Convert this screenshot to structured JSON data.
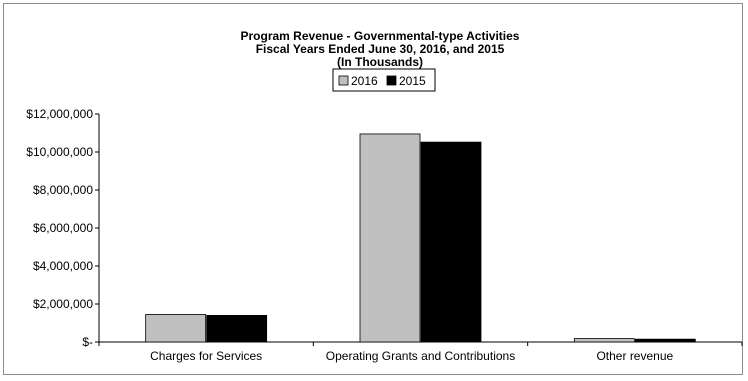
{
  "chart_data": {
    "type": "bar",
    "title": [
      "Program Revenue - Governmental-type Activities",
      "Fiscal Years Ended June 30, 2016, and 2015",
      "(In Thousands)"
    ],
    "categories": [
      "Charges for Services",
      "Operating Grants and Contributions",
      "Other revenue"
    ],
    "series": [
      {
        "name": "2016",
        "color": "#c0c0c0",
        "values": [
          1450000,
          10950000,
          180000
        ]
      },
      {
        "name": "2015",
        "color": "#000000",
        "values": [
          1400000,
          10520000,
          150000
        ]
      }
    ],
    "ylim": [
      0,
      12000000
    ],
    "yticks": [
      0,
      2000000,
      4000000,
      6000000,
      8000000,
      10000000,
      12000000
    ],
    "ytick_labels": [
      "$-",
      "$2,000,000",
      "$4,000,000",
      "$6,000,000",
      "$8,000,000",
      "$10,000,000",
      "$12,000,000"
    ],
    "grid": false,
    "legend_position": "top-center",
    "xlabel": "",
    "ylabel": ""
  }
}
